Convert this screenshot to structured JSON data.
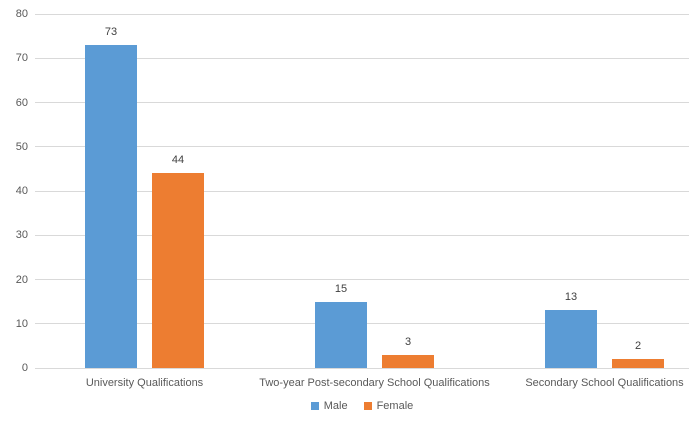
{
  "chart_data": {
    "type": "bar",
    "title": "",
    "xlabel": "",
    "ylabel": "",
    "categories": [
      "University Qualifications",
      "Two-year Post-secondary School Qualifications",
      "Secondary School Qualifications"
    ],
    "series": [
      {
        "name": "Male",
        "color": "#5B9BD5",
        "values": [
          73,
          15,
          13
        ]
      },
      {
        "name": "Female",
        "color": "#ED7D31",
        "values": [
          44,
          3,
          2
        ]
      }
    ],
    "ylim": [
      0,
      80
    ],
    "yticks": [
      0,
      10,
      20,
      30,
      40,
      50,
      60,
      70,
      80
    ],
    "grid": true,
    "data_labels": true,
    "legend_position": "bottom"
  },
  "colors": {
    "background": "#FFFFFF",
    "gridline": "#D9D9D9",
    "axis_line": "#D9D9D9",
    "tick_label": "#595959",
    "category_label": "#595959",
    "data_label": "#404040",
    "legend_label": "#595959"
  }
}
